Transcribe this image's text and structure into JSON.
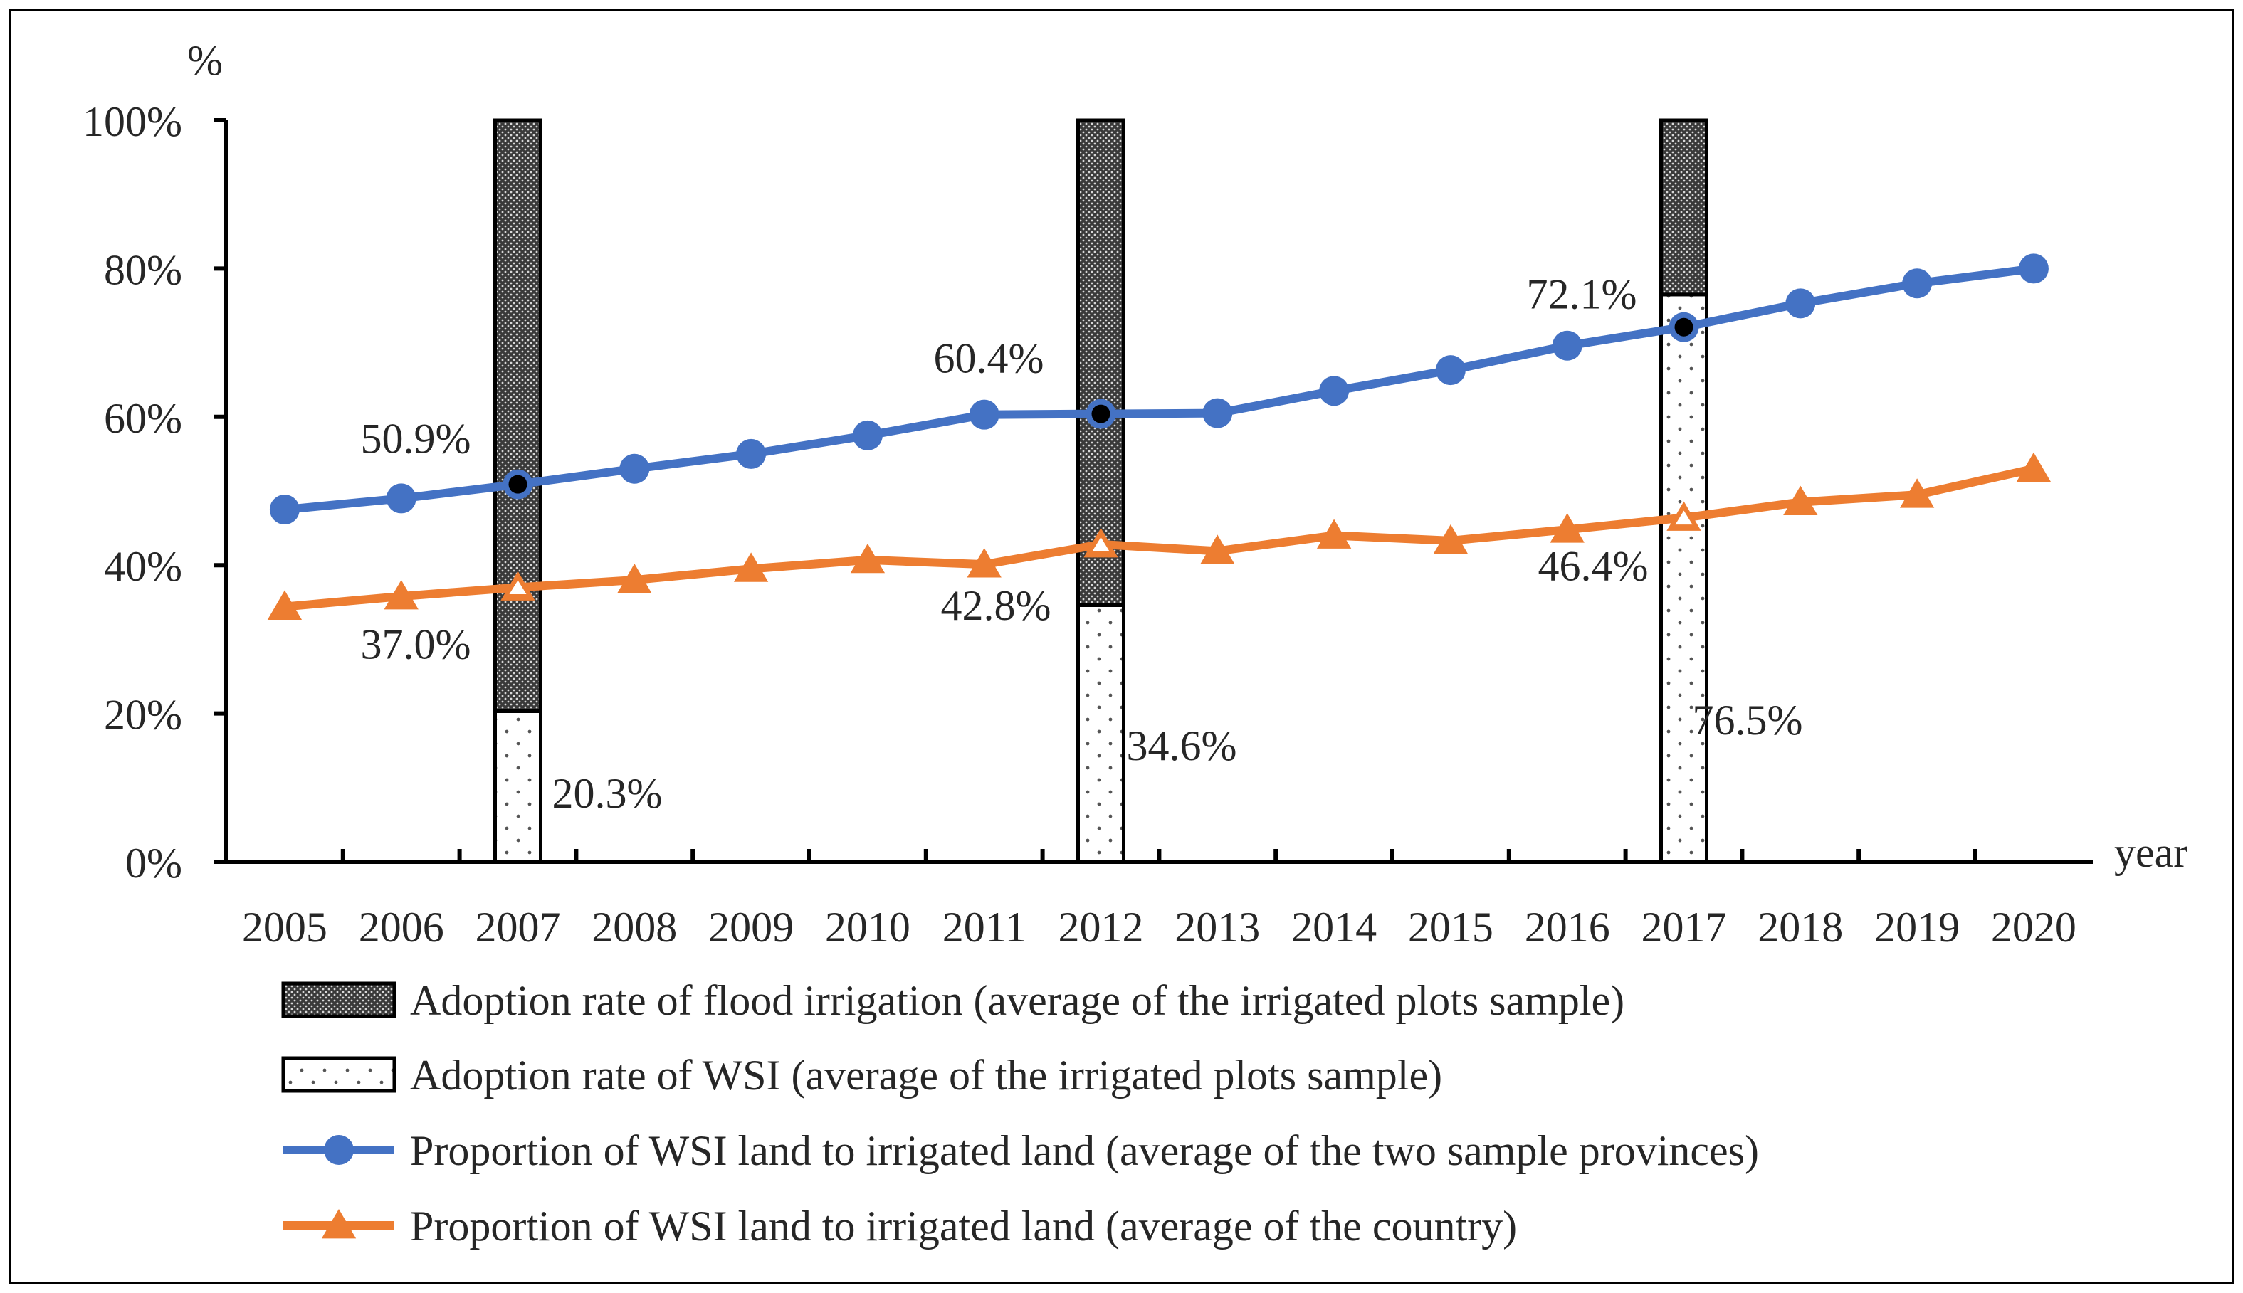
{
  "chart_data": {
    "type": "line+bar",
    "y_unit_label": "%",
    "x_axis_label": "year",
    "ylim": [
      0,
      100
    ],
    "y_ticks": [
      0,
      20,
      40,
      60,
      80,
      100
    ],
    "y_tick_labels": [
      "0%",
      "20%",
      "40%",
      "60%",
      "80%",
      "100%"
    ],
    "categories": [
      "2005",
      "2006",
      "2007",
      "2008",
      "2009",
      "2010",
      "2011",
      "2012",
      "2013",
      "2014",
      "2015",
      "2016",
      "2017",
      "2018",
      "2019",
      "2020"
    ],
    "bars": {
      "years": [
        "2007",
        "2012",
        "2017"
      ],
      "wsi": [
        20.3,
        34.6,
        76.5
      ],
      "flood": [
        79.7,
        65.4,
        23.5
      ],
      "wsi_labels": [
        "20.3%",
        "34.6%",
        "76.5%"
      ]
    },
    "series": [
      {
        "name": "Proportion of WSI land to irrigated land (average of the two sample provinces)",
        "color": "#4472C4",
        "marker": "circle",
        "values": [
          47.5,
          49.0,
          50.9,
          53.0,
          55.0,
          57.5,
          60.3,
          60.4,
          60.5,
          63.5,
          66.3,
          69.6,
          72.1,
          75.3,
          78.0,
          80.0
        ],
        "labeled_points": [
          {
            "year": "2007",
            "label": "50.9%"
          },
          {
            "year": "2012",
            "label": "60.4%"
          },
          {
            "year": "2017",
            "label": "72.1%"
          }
        ]
      },
      {
        "name": "Proportion of WSI land to irrigated land (average of the country)",
        "color": "#ED7D31",
        "marker": "triangle",
        "values": [
          34.4,
          35.8,
          37.0,
          38.0,
          39.5,
          40.7,
          40.1,
          42.8,
          41.9,
          44.0,
          43.3,
          44.8,
          46.4,
          48.5,
          49.5,
          53.0
        ],
        "labeled_points": [
          {
            "year": "2007",
            "label": "37.0%"
          },
          {
            "year": "2012",
            "label": "42.8%"
          },
          {
            "year": "2017",
            "label": "46.4%"
          }
        ]
      }
    ],
    "legend": [
      {
        "key": "flood",
        "label": "Adoption rate of flood irrigation (average of the irrigated plots sample)"
      },
      {
        "key": "wsi",
        "label": "Adoption rate of WSI (average of the irrigated plots sample)"
      },
      {
        "key": "provinces",
        "label": "Proportion of WSI land to irrigated land (average of the two sample provinces)"
      },
      {
        "key": "country",
        "label": "Proportion of WSI land to irrigated land (average of the country)"
      }
    ]
  }
}
